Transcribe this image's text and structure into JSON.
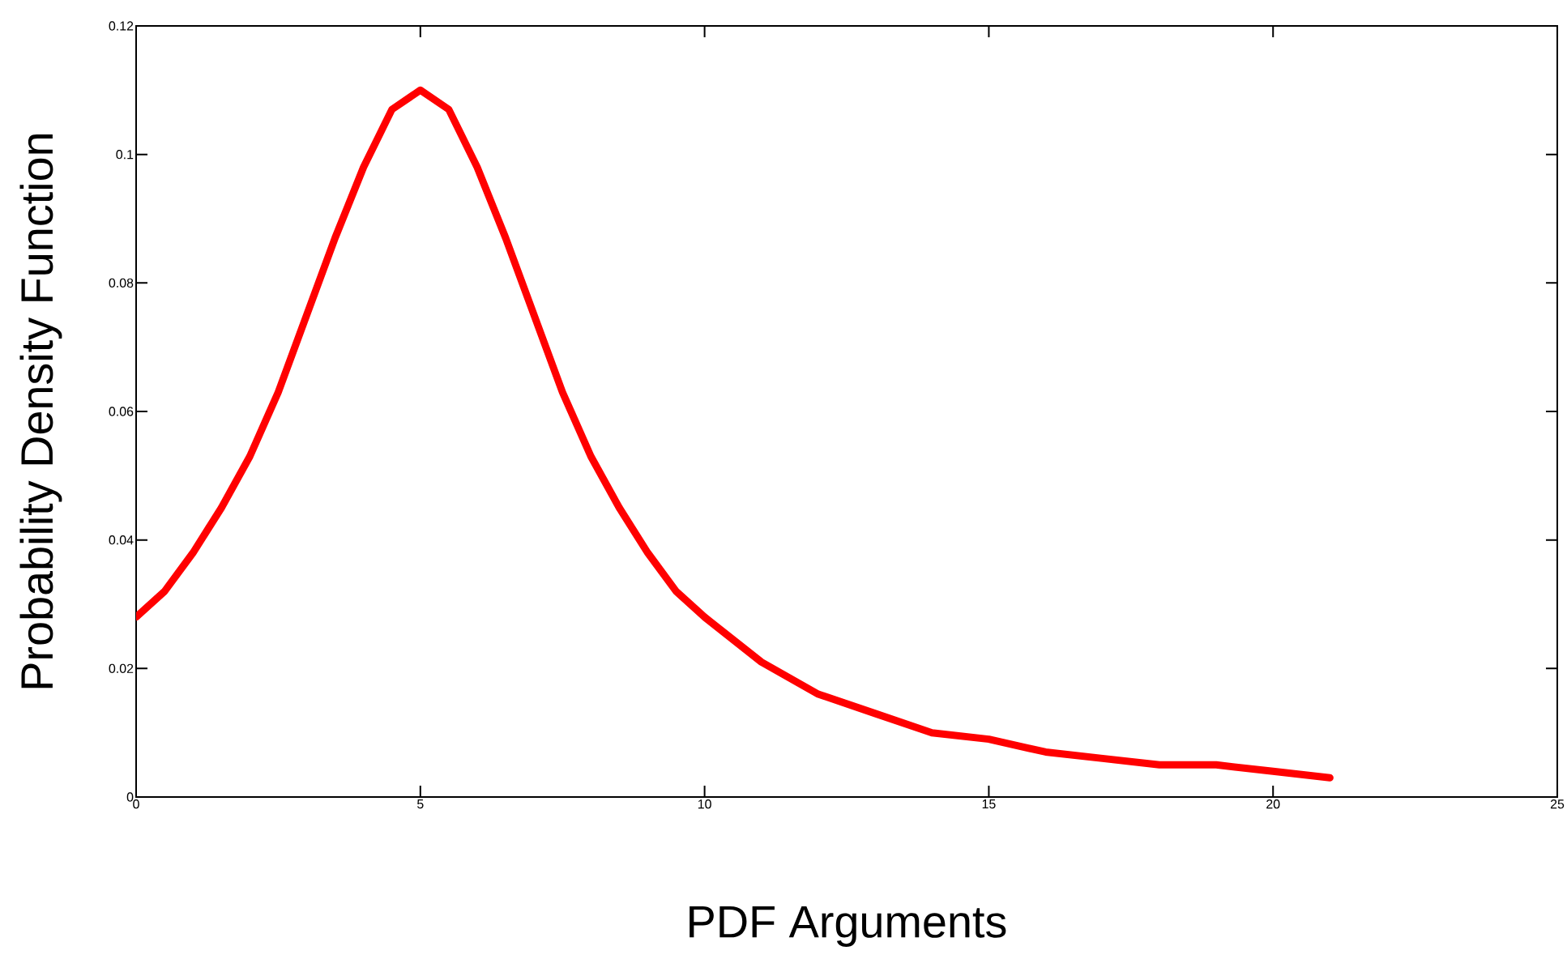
{
  "chart_data": {
    "type": "line",
    "xlabel": "PDF Arguments",
    "ylabel": "Probability Density Function",
    "x": [
      0,
      0.5,
      1,
      1.5,
      2,
      2.5,
      3,
      3.5,
      4,
      4.5,
      5,
      5.5,
      6,
      6.5,
      7,
      7.5,
      8,
      8.5,
      9,
      9.5,
      10,
      11,
      12,
      13,
      14,
      15,
      16,
      17,
      18,
      19,
      20,
      21
    ],
    "series": [
      {
        "color": "#ff0000",
        "values": [
          0.028,
          0.032,
          0.038,
          0.045,
          0.053,
          0.063,
          0.075,
          0.087,
          0.098,
          0.107,
          0.11,
          0.107,
          0.098,
          0.087,
          0.075,
          0.063,
          0.053,
          0.045,
          0.038,
          0.032,
          0.028,
          0.021,
          0.016,
          0.013,
          0.01,
          0.009,
          0.007,
          0.006,
          0.005,
          0.005,
          0.004,
          0.003
        ]
      }
    ],
    "xlim": [
      0,
      25
    ],
    "ylim": [
      0,
      0.12
    ],
    "xticks": [
      0,
      5,
      10,
      15,
      20,
      25
    ],
    "yticks": [
      0,
      0.02,
      0.04,
      0.06,
      0.08,
      0.1,
      0.12
    ],
    "marker": "none",
    "line_style": "solid"
  }
}
